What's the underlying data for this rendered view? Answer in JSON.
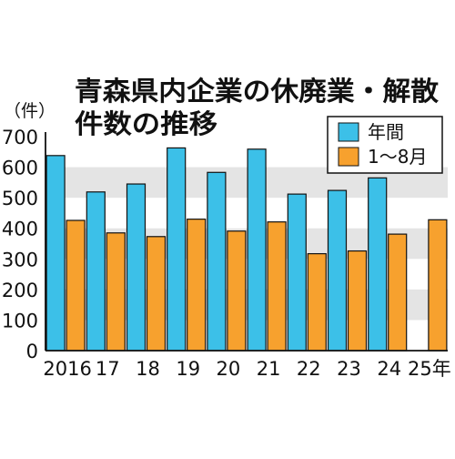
{
  "chart_data": {
    "type": "bar",
    "title_lines": [
      "青森県内企業の休廃業・解散",
      "件数の推移"
    ],
    "y_unit_label": "（件）",
    "ylim": [
      0,
      700
    ],
    "yticks": [
      0,
      100,
      200,
      300,
      400,
      500,
      600,
      700
    ],
    "grid": "alternating horizontal bands",
    "legend_position": "top-right",
    "categories": [
      "2016",
      "17",
      "18",
      "19",
      "20",
      "21",
      "22",
      "23",
      "24",
      "25年"
    ],
    "series": [
      {
        "name": "年間",
        "color": "#3cc0e8",
        "values": [
          638,
          519,
          545,
          663,
          583,
          659,
          512,
          524,
          565,
          null
        ]
      },
      {
        "name": "1～8月",
        "color": "#f7a12e",
        "values": [
          426,
          385,
          373,
          430,
          391,
          421,
          317,
          326,
          381,
          428
        ]
      }
    ]
  }
}
